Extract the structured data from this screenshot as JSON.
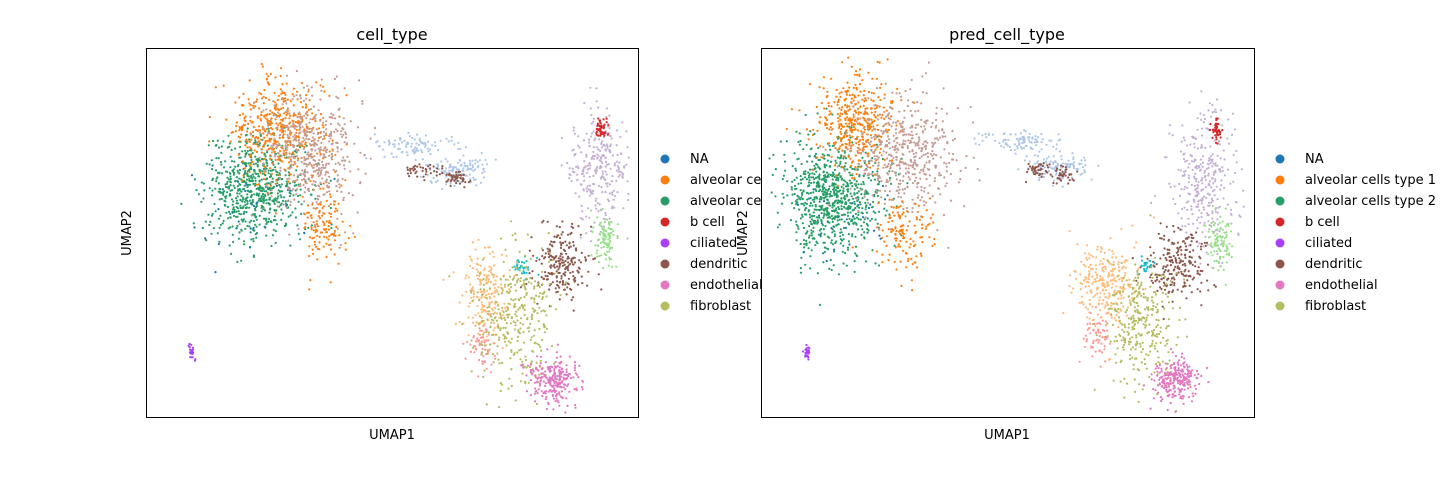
{
  "chart_data": [
    {
      "type": "scatter",
      "title": "cell_type",
      "xlabel": "UMAP1",
      "ylabel": "UMAP2",
      "grid": false,
      "ticks": "hidden",
      "legend_placement": "right, outside plot",
      "legend": [
        "NA",
        "alveolar ce",
        "alveolar ce",
        "b cell",
        "ciliated",
        "dendritic",
        "endothelial",
        "fibroblast"
      ],
      "legend_colors": [
        "#1f77b4",
        "#ff7f0e",
        "#279e68",
        "#d62728",
        "#aa40fc",
        "#8c564b",
        "#e377c2",
        "#b5bd61"
      ],
      "hidden_categories": [
        {
          "color": "#c49c94",
          "note": "unlabeled series (legend truncated)"
        },
        {
          "color": "#aec7e8"
        },
        {
          "color": "#c5b0d5"
        },
        {
          "color": "#98df8a"
        },
        {
          "color": "#ff9896"
        },
        {
          "color": "#ffbb78"
        },
        {
          "color": "#17becf"
        }
      ],
      "clusters": [
        {
          "category": 2,
          "cx": 0.22,
          "cy": 0.62,
          "sx": 0.05,
          "sy": 0.07,
          "n": 700
        },
        {
          "category": 1,
          "cx": 0.27,
          "cy": 0.78,
          "sx": 0.05,
          "sy": 0.07,
          "n": 450
        },
        {
          "category": 8,
          "cx": 0.33,
          "cy": 0.72,
          "sx": 0.05,
          "sy": 0.08,
          "n": 500
        },
        {
          "category": 1,
          "cx": 0.36,
          "cy": 0.53,
          "sx": 0.025,
          "sy": 0.06,
          "n": 120
        },
        {
          "category": 9,
          "cx": 0.54,
          "cy": 0.74,
          "sx": 0.04,
          "sy": 0.015,
          "n": 90
        },
        {
          "category": 9,
          "cx": 0.64,
          "cy": 0.67,
          "sx": 0.03,
          "sy": 0.02,
          "n": 120
        },
        {
          "category": 5,
          "cx": 0.56,
          "cy": 0.67,
          "sx": 0.02,
          "sy": 0.01,
          "n": 40
        },
        {
          "category": 5,
          "cx": 0.63,
          "cy": 0.65,
          "sx": 0.012,
          "sy": 0.01,
          "n": 50
        },
        {
          "category": 10,
          "cx": 0.92,
          "cy": 0.68,
          "sx": 0.03,
          "sy": 0.08,
          "n": 280
        },
        {
          "category": 3,
          "cx": 0.925,
          "cy": 0.78,
          "sx": 0.006,
          "sy": 0.015,
          "n": 50
        },
        {
          "category": 11,
          "cx": 0.935,
          "cy": 0.48,
          "sx": 0.012,
          "sy": 0.035,
          "n": 90
        },
        {
          "category": 5,
          "cx": 0.84,
          "cy": 0.41,
          "sx": 0.03,
          "sy": 0.05,
          "n": 220
        },
        {
          "category": 14,
          "cx": 0.77,
          "cy": 0.41,
          "sx": 0.012,
          "sy": 0.015,
          "n": 30
        },
        {
          "category": 13,
          "cx": 0.69,
          "cy": 0.34,
          "sx": 0.025,
          "sy": 0.06,
          "n": 200
        },
        {
          "category": 12,
          "cx": 0.68,
          "cy": 0.2,
          "sx": 0.012,
          "sy": 0.03,
          "n": 60
        },
        {
          "category": 7,
          "cx": 0.75,
          "cy": 0.26,
          "sx": 0.04,
          "sy": 0.1,
          "n": 330
        },
        {
          "category": 6,
          "cx": 0.83,
          "cy": 0.1,
          "sx": 0.025,
          "sy": 0.03,
          "n": 250
        },
        {
          "category": 4,
          "cx": 0.09,
          "cy": 0.18,
          "sx": 0.004,
          "sy": 0.012,
          "n": 25
        },
        {
          "category": 0,
          "cx": 0.2,
          "cy": 0.55,
          "sx": 0.06,
          "sy": 0.08,
          "n": 30
        }
      ]
    },
    {
      "type": "scatter",
      "title": "pred_cell_type",
      "xlabel": "UMAP1",
      "ylabel": "UMAP2",
      "grid": false,
      "ticks": "hidden",
      "legend_placement": "right, outside plot",
      "legend": [
        "NA",
        "alveolar cells type 1",
        "alveolar cells type 2",
        "b cell",
        "ciliated",
        "dendritic",
        "endothelial",
        "fibroblast"
      ],
      "legend_colors": [
        "#1f77b4",
        "#ff7f0e",
        "#279e68",
        "#d62728",
        "#aa40fc",
        "#8c564b",
        "#e377c2",
        "#b5bd61"
      ],
      "hidden_categories": [
        {
          "color": "#c49c94"
        },
        {
          "color": "#aec7e8"
        },
        {
          "color": "#c5b0d5"
        },
        {
          "color": "#98df8a"
        },
        {
          "color": "#ff9896"
        },
        {
          "color": "#ffbb78"
        },
        {
          "color": "#17becf"
        }
      ],
      "clusters": [
        {
          "category": 2,
          "cx": 0.14,
          "cy": 0.6,
          "sx": 0.05,
          "sy": 0.08,
          "n": 800
        },
        {
          "category": 1,
          "cx": 0.19,
          "cy": 0.8,
          "sx": 0.04,
          "sy": 0.06,
          "n": 400
        },
        {
          "category": 8,
          "cx": 0.29,
          "cy": 0.72,
          "sx": 0.055,
          "sy": 0.08,
          "n": 500
        },
        {
          "category": 1,
          "cx": 0.29,
          "cy": 0.5,
          "sx": 0.03,
          "sy": 0.05,
          "n": 130
        },
        {
          "category": 9,
          "cx": 0.52,
          "cy": 0.75,
          "sx": 0.04,
          "sy": 0.015,
          "n": 100
        },
        {
          "category": 9,
          "cx": 0.6,
          "cy": 0.68,
          "sx": 0.03,
          "sy": 0.02,
          "n": 110
        },
        {
          "category": 5,
          "cx": 0.56,
          "cy": 0.67,
          "sx": 0.012,
          "sy": 0.01,
          "n": 40
        },
        {
          "category": 5,
          "cx": 0.61,
          "cy": 0.66,
          "sx": 0.012,
          "sy": 0.01,
          "n": 40
        },
        {
          "category": 10,
          "cx": 0.9,
          "cy": 0.64,
          "sx": 0.035,
          "sy": 0.09,
          "n": 320
        },
        {
          "category": 3,
          "cx": 0.925,
          "cy": 0.78,
          "sx": 0.006,
          "sy": 0.015,
          "n": 45
        },
        {
          "category": 11,
          "cx": 0.93,
          "cy": 0.48,
          "sx": 0.012,
          "sy": 0.035,
          "n": 100
        },
        {
          "category": 5,
          "cx": 0.84,
          "cy": 0.41,
          "sx": 0.03,
          "sy": 0.05,
          "n": 220
        },
        {
          "category": 14,
          "cx": 0.78,
          "cy": 0.41,
          "sx": 0.008,
          "sy": 0.012,
          "n": 25
        },
        {
          "category": 13,
          "cx": 0.7,
          "cy": 0.37,
          "sx": 0.03,
          "sy": 0.06,
          "n": 260
        },
        {
          "category": 12,
          "cx": 0.68,
          "cy": 0.22,
          "sx": 0.012,
          "sy": 0.03,
          "n": 60
        },
        {
          "category": 7,
          "cx": 0.77,
          "cy": 0.25,
          "sx": 0.035,
          "sy": 0.08,
          "n": 320
        },
        {
          "category": 6,
          "cx": 0.84,
          "cy": 0.1,
          "sx": 0.025,
          "sy": 0.03,
          "n": 250
        },
        {
          "category": 4,
          "cx": 0.09,
          "cy": 0.18,
          "sx": 0.004,
          "sy": 0.012,
          "n": 25
        },
        {
          "category": 0,
          "cx": 0.18,
          "cy": 0.55,
          "sx": 0.06,
          "sy": 0.08,
          "n": 30
        }
      ]
    }
  ]
}
